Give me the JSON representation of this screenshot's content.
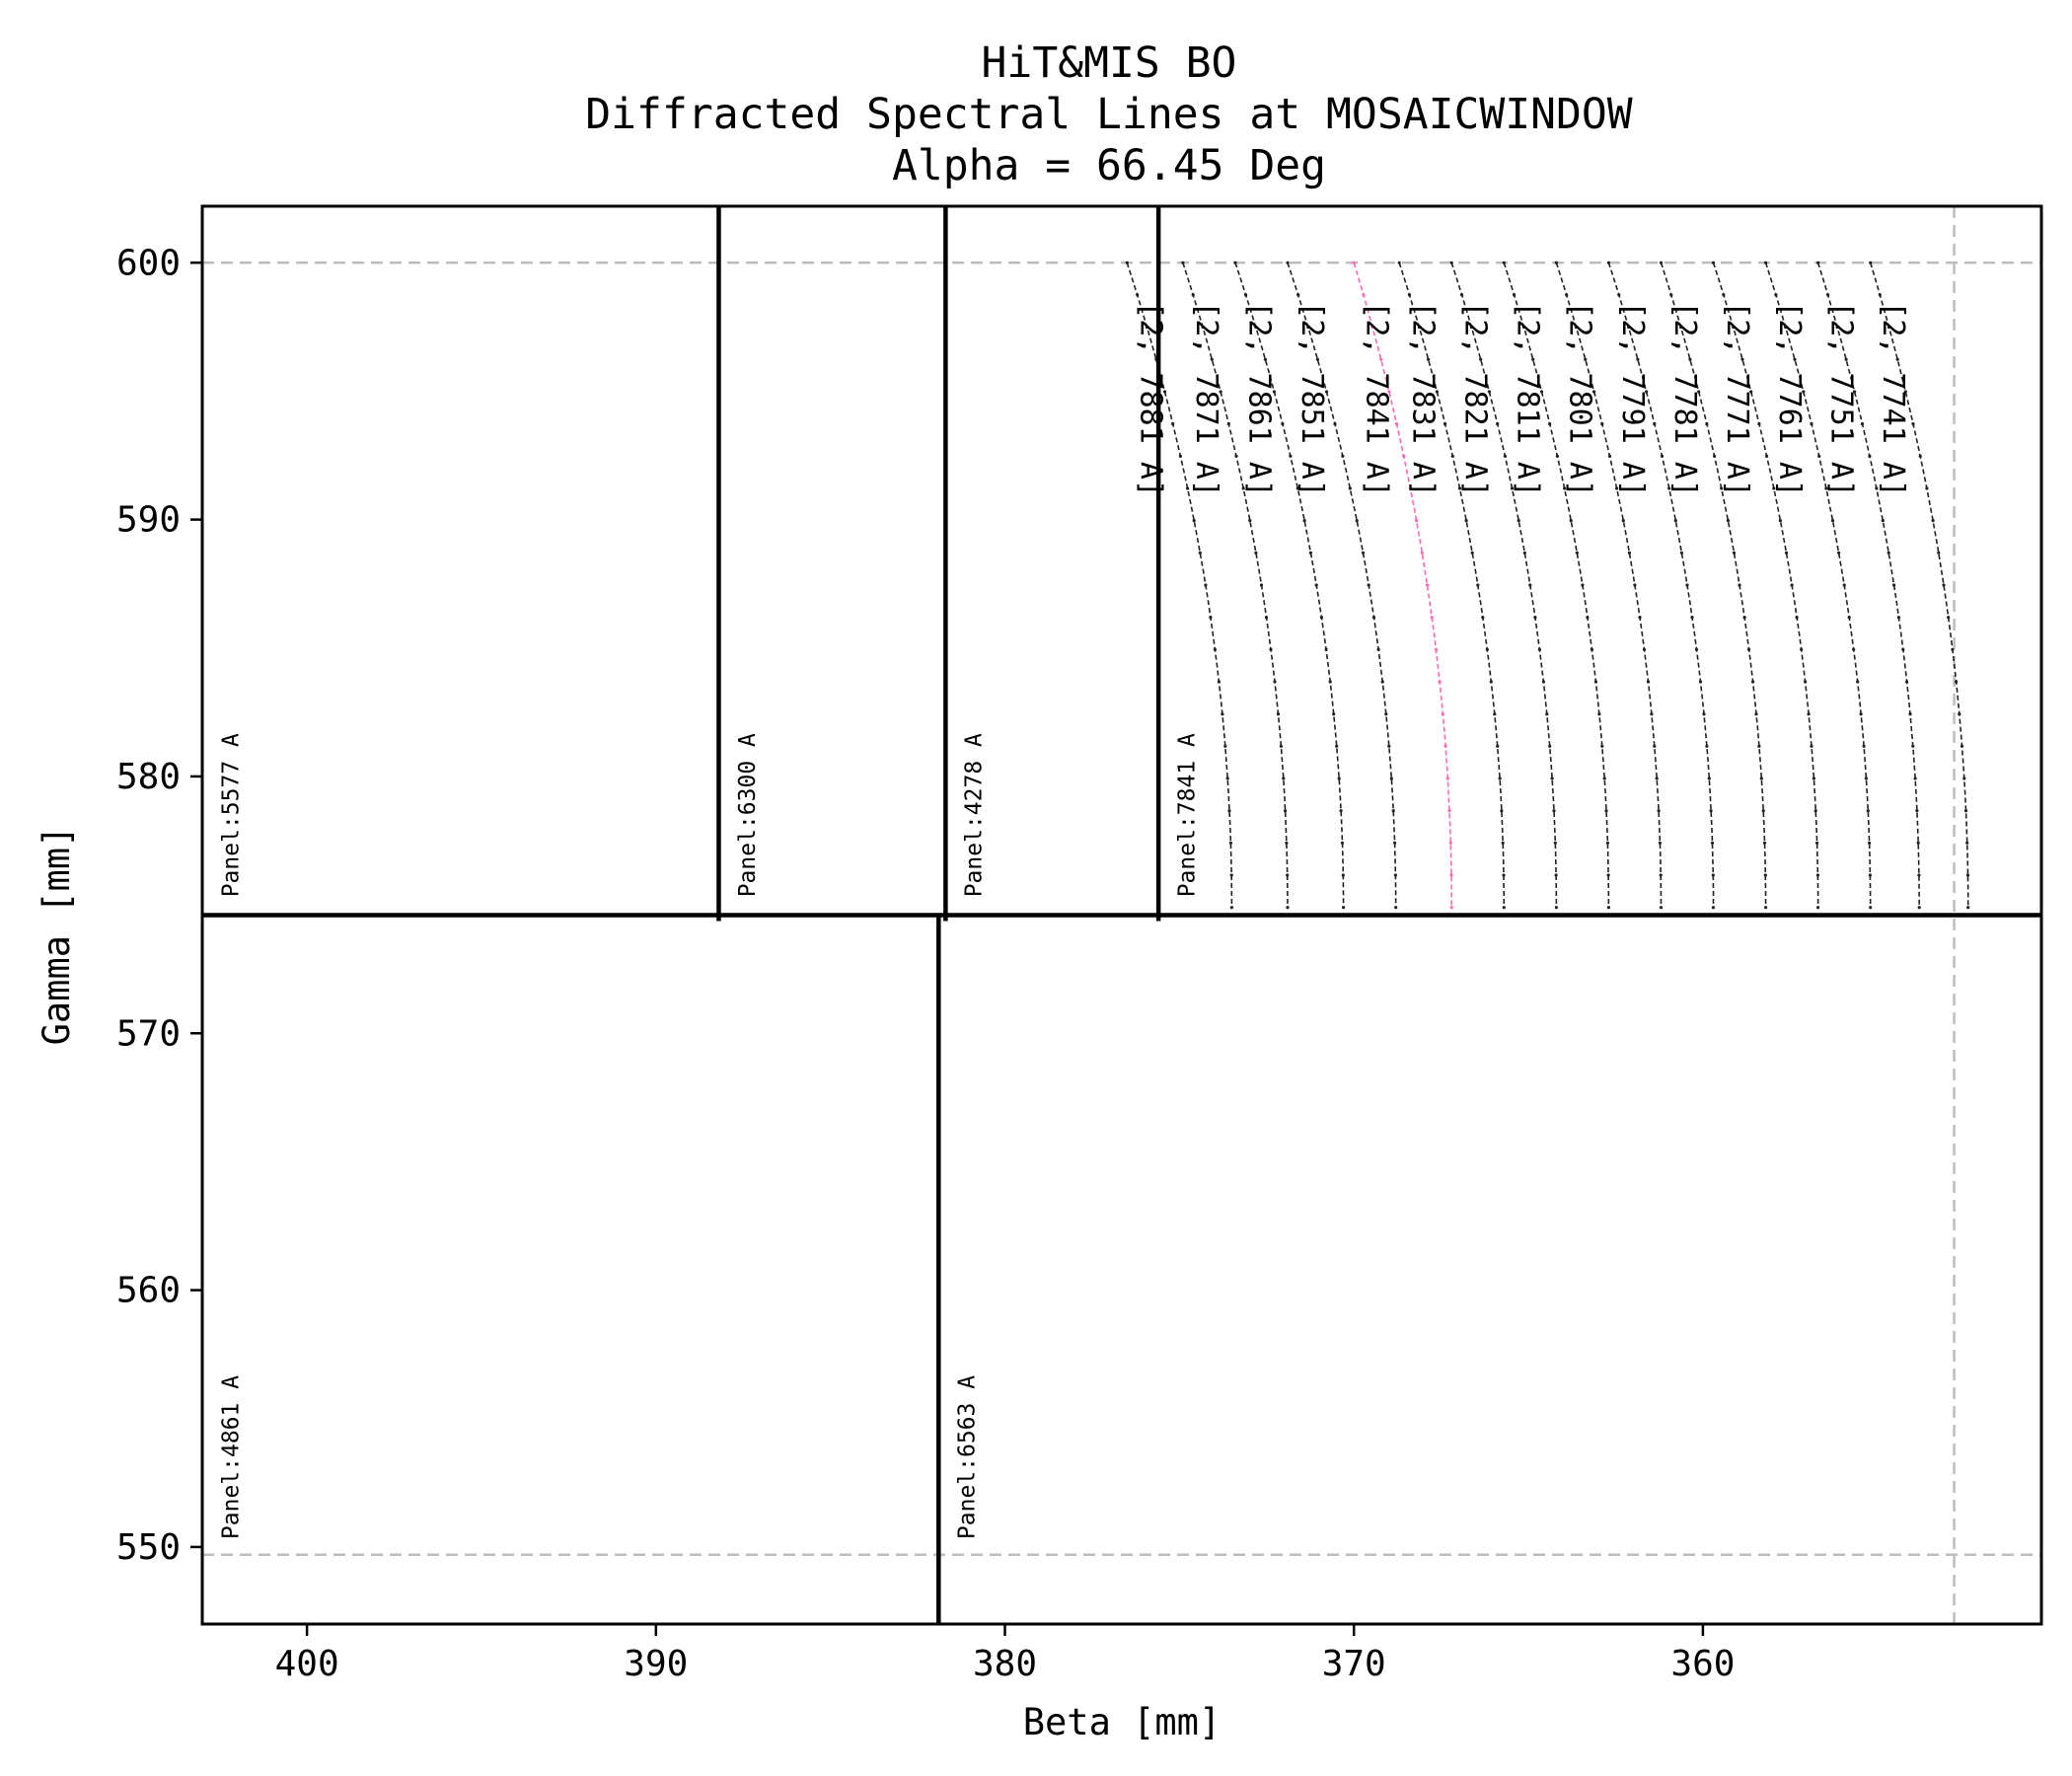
{
  "chart_data": {
    "type": "line",
    "title_lines": [
      "HiT&MIS BO",
      "Diffracted Spectral Lines at MOSAICWINDOW",
      "Alpha = 66.45 Deg"
    ],
    "xlabel": "Beta [mm]",
    "ylabel": "Gamma [mm]",
    "xlim": [
      403,
      350.3
    ],
    "ylim": [
      547,
      602.2
    ],
    "x_inverted": true,
    "xticks": [
      400,
      390,
      380,
      370,
      360
    ],
    "yticks": [
      550,
      560,
      570,
      580,
      590,
      600
    ],
    "reference_lines": {
      "horizontal": [
        600,
        549.7
      ],
      "vertical": [
        352.8
      ],
      "style": "dashed",
      "color": "#bdbdbd"
    },
    "panel_dividers": {
      "horizontal_gamma": 574.6,
      "top_vertical_beta": [
        388.2,
        381.7,
        375.6
      ],
      "bottom_vertical_beta": [
        381.9
      ],
      "color": "#000000"
    },
    "panel_labels": [
      {
        "text": "Panel:5577 A",
        "beta": 402.2,
        "gamma": 575.3
      },
      {
        "text": "Panel:6300 A",
        "beta": 387.4,
        "gamma": 575.3
      },
      {
        "text": "Panel:4278 A",
        "beta": 380.9,
        "gamma": 575.3
      },
      {
        "text": "Panel:7841 A",
        "beta": 374.8,
        "gamma": 575.3
      },
      {
        "text": "Panel:4861 A",
        "beta": 402.2,
        "gamma": 550.3
      },
      {
        "text": "Panel:6563 A",
        "beta": 381.1,
        "gamma": 550.3
      }
    ],
    "series": [
      {
        "name": "[2, 7881 A]",
        "wavelength": 7881,
        "color": "#222222",
        "x_top": 376.5,
        "x_bottom": 373.5
      },
      {
        "name": "[2, 7871 A]",
        "wavelength": 7871,
        "color": "#222222",
        "x_top": 374.9,
        "x_bottom": 371.9
      },
      {
        "name": "[2, 7861 A]",
        "wavelength": 7861,
        "color": "#222222",
        "x_top": 373.4,
        "x_bottom": 370.3
      },
      {
        "name": "[2, 7851 A]",
        "wavelength": 7851,
        "color": "#222222",
        "x_top": 371.9,
        "x_bottom": 368.8
      },
      {
        "name": "[2, 7841 A]",
        "wavelength": 7841,
        "color": "#ff69b4",
        "x_top": 370.0,
        "x_bottom": 367.2
      },
      {
        "name": "[2, 7831 A]",
        "wavelength": 7831,
        "color": "#222222",
        "x_top": 368.7,
        "x_bottom": 365.7
      },
      {
        "name": "[2, 7821 A]",
        "wavelength": 7821,
        "color": "#222222",
        "x_top": 367.2,
        "x_bottom": 364.2
      },
      {
        "name": "[2, 7811 A]",
        "wavelength": 7811,
        "color": "#222222",
        "x_top": 365.7,
        "x_bottom": 362.7
      },
      {
        "name": "[2, 7801 A]",
        "wavelength": 7801,
        "color": "#222222",
        "x_top": 364.2,
        "x_bottom": 361.2
      },
      {
        "name": "[2, 7791 A]",
        "wavelength": 7791,
        "color": "#222222",
        "x_top": 362.7,
        "x_bottom": 359.7
      },
      {
        "name": "[2, 7781 A]",
        "wavelength": 7781,
        "color": "#222222",
        "x_top": 361.2,
        "x_bottom": 358.2
      },
      {
        "name": "[2, 7771 A]",
        "wavelength": 7771,
        "color": "#222222",
        "x_top": 359.7,
        "x_bottom": 356.7
      },
      {
        "name": "[2, 7761 A]",
        "wavelength": 7761,
        "color": "#222222",
        "x_top": 358.2,
        "x_bottom": 355.2
      },
      {
        "name": "[2, 7751 A]",
        "wavelength": 7751,
        "color": "#222222",
        "x_top": 356.7,
        "x_bottom": 353.8
      },
      {
        "name": "[2, 7741 A]",
        "wavelength": 7741,
        "color": "#222222",
        "x_top": 355.2,
        "x_bottom": 352.4
      }
    ],
    "curve_gamma_range": [
      600,
      574.9
    ],
    "series_label_gamma": 598.5,
    "grid": false,
    "legend": "none"
  }
}
